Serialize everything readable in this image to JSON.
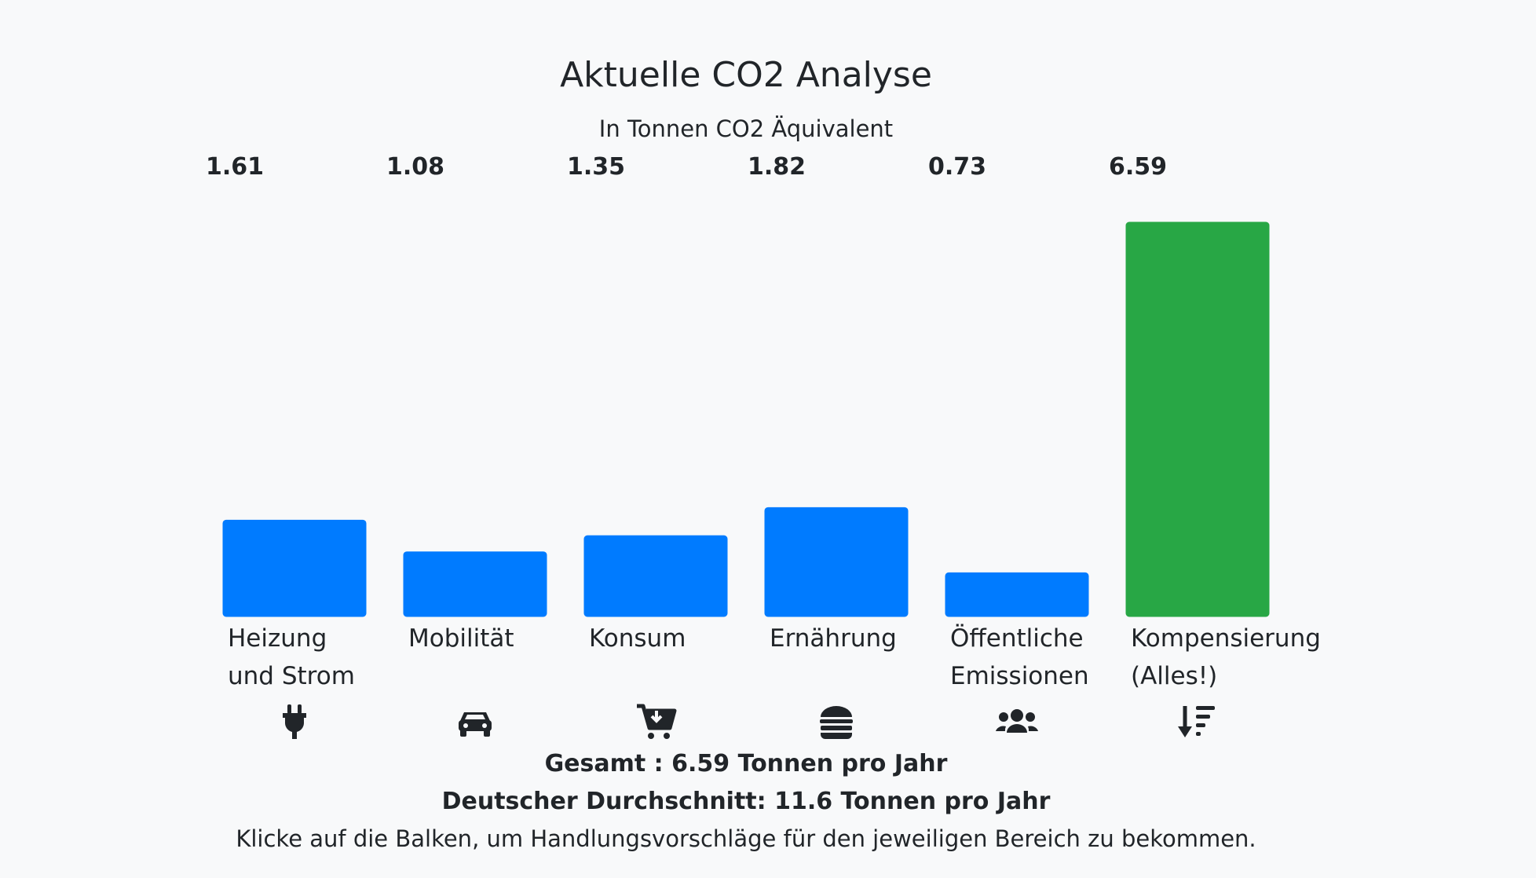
{
  "chart_data": {
    "type": "bar",
    "title": "Aktuelle CO2 Analyse",
    "subtitle": "In Tonnen CO2 Äquivalent",
    "categories": [
      [
        "Heizung",
        "und Strom"
      ],
      [
        "Mobilität"
      ],
      [
        "Konsum"
      ],
      [
        "Ernährung"
      ],
      [
        "Öffentliche",
        "Emissionen"
      ],
      [
        "Kompensierung",
        "(Alles!)"
      ]
    ],
    "values": [
      1.61,
      1.08,
      1.35,
      1.82,
      0.73,
      6.59
    ],
    "value_labels": [
      "1.61",
      "1.08",
      "1.35",
      "1.82",
      "0.73",
      "6.59"
    ],
    "bar_colors": [
      "#007bff",
      "#007bff",
      "#007bff",
      "#007bff",
      "#007bff",
      "#28a745"
    ],
    "icons": [
      "plug-icon",
      "car-icon",
      "cart-download-icon",
      "hamburger-icon",
      "users-icon",
      "sort-amount-down-icon"
    ],
    "ylim": [
      0,
      6.59
    ],
    "grid": false,
    "legend": "none"
  },
  "summary": {
    "total": "Gesamt : 6.59 Tonnen pro Jahr",
    "average": "Deutscher Durchschnitt: 11.6 Tonnen pro Jahr",
    "hint": "Klicke auf die Balken, um Handlungsvorschläge für den jeweiligen Bereich zu bekommen."
  }
}
